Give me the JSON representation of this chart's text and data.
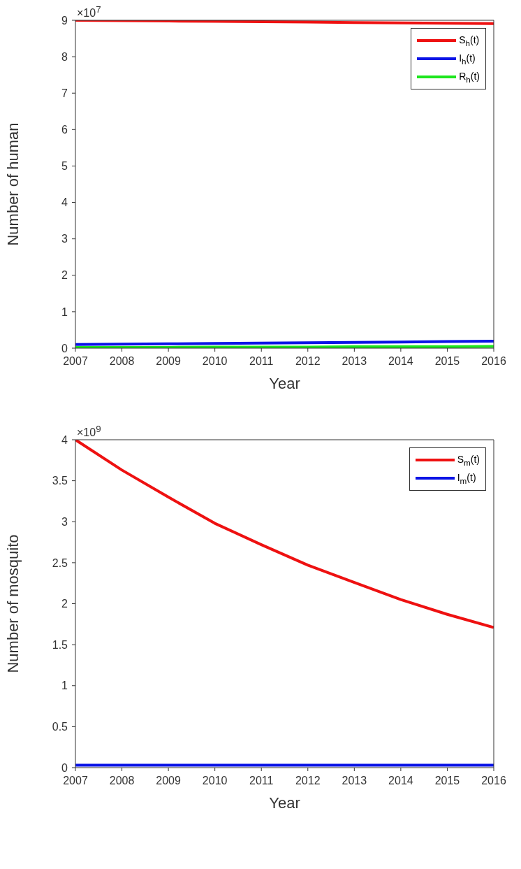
{
  "chart_data": [
    {
      "type": "line",
      "xlabel": "Year",
      "ylabel": "Number of human",
      "annotations": [
        "×10$^{7}$"
      ],
      "x": [
        2007,
        2008,
        2009,
        2010,
        2011,
        2012,
        2013,
        2014,
        2015,
        2016
      ],
      "xlim": [
        2007,
        2016
      ],
      "xticks": [
        2007,
        2008,
        2009,
        2010,
        2011,
        2012,
        2013,
        2014,
        2015,
        2016
      ],
      "ylim": [
        0,
        9
      ],
      "yticks": [
        0,
        1,
        2,
        3,
        4,
        5,
        6,
        7,
        8,
        9
      ],
      "legend": "top right",
      "series": [
        {
          "name": "S$_{h}$(t)",
          "color": "#ee1111",
          "values": [
            9.0,
            8.99,
            8.98,
            8.97,
            8.96,
            8.95,
            8.94,
            8.93,
            8.92,
            8.91
          ]
        },
        {
          "name": "I$_{h}$(t)",
          "color": "#0a14e6",
          "values": [
            0.1,
            0.11,
            0.12,
            0.13,
            0.14,
            0.15,
            0.16,
            0.17,
            0.18,
            0.19
          ]
        },
        {
          "name": "R$_{h}$(t)",
          "color": "#1ee61e",
          "values": [
            0.02,
            0.02,
            0.02,
            0.03,
            0.03,
            0.03,
            0.04,
            0.04,
            0.04,
            0.05
          ]
        }
      ]
    },
    {
      "type": "line",
      "xlabel": "Year",
      "ylabel": "Number of mosquito",
      "annotations": [
        "×10$^{9}$"
      ],
      "x": [
        2007,
        2008,
        2009,
        2010,
        2011,
        2012,
        2013,
        2014,
        2015,
        2016
      ],
      "xlim": [
        2007,
        2016
      ],
      "xticks": [
        2007,
        2008,
        2009,
        2010,
        2011,
        2012,
        2013,
        2014,
        2015,
        2016
      ],
      "ylim": [
        0,
        4
      ],
      "yticks": [
        0,
        0.5,
        1,
        1.5,
        2,
        2.5,
        3,
        3.5,
        4
      ],
      "legend": "top right",
      "series": [
        {
          "name": "S$_{m}$(t)",
          "color": "#ee1111",
          "values": [
            4.0,
            3.63,
            3.3,
            2.98,
            2.72,
            2.47,
            2.26,
            2.05,
            1.87,
            1.71
          ]
        },
        {
          "name": "I$_{m}$(t)",
          "color": "#0a14e6",
          "values": [
            0.03,
            0.03,
            0.03,
            0.03,
            0.03,
            0.03,
            0.03,
            0.03,
            0.03,
            0.03
          ]
        }
      ]
    }
  ]
}
